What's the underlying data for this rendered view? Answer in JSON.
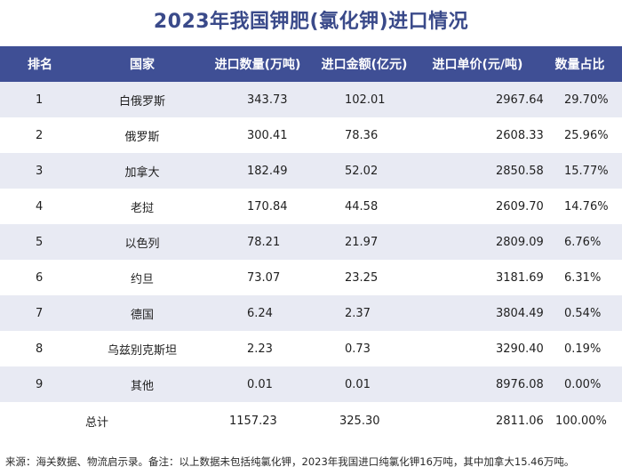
{
  "title": "2023年我国钾肥(氯化钾)进口情况",
  "headers": [
    "排名",
    "国家",
    "进口数量(万吨)",
    "进口金额(亿元)",
    "进口单价(元/吨)",
    "数量占比"
  ],
  "rows": [
    {
      "rank": "1",
      "country": "白俄罗斯",
      "qty": "343.73",
      "amount": "102.01",
      "price": "2967.64",
      "share": "29.70%"
    },
    {
      "rank": "2",
      "country": "俄罗斯",
      "qty": "300.41",
      "amount": "78.36",
      "price": "2608.33",
      "share": "25.96%"
    },
    {
      "rank": "3",
      "country": "加拿大",
      "qty": "182.49",
      "amount": "52.02",
      "price": "2850.58",
      "share": "15.77%"
    },
    {
      "rank": "4",
      "country": "老挝",
      "qty": "170.84",
      "amount": "44.58",
      "price": "2609.70",
      "share": "14.76%"
    },
    {
      "rank": "5",
      "country": "以色列",
      "qty": "78.21",
      "amount": "21.97",
      "price": "2809.09",
      "share": "6.76%"
    },
    {
      "rank": "6",
      "country": "约旦",
      "qty": "73.07",
      "amount": "23.25",
      "price": "3181.69",
      "share": "6.31%"
    },
    {
      "rank": "7",
      "country": "德国",
      "qty": "6.24",
      "amount": "2.37",
      "price": "3804.49",
      "share": "0.54%"
    },
    {
      "rank": "8",
      "country": "乌兹别克斯坦",
      "qty": "2.23",
      "amount": "0.73",
      "price": "3290.40",
      "share": "0.19%"
    },
    {
      "rank": "9",
      "country": "其他",
      "qty": "0.01",
      "amount": "0.01",
      "price": "8976.08",
      "share": "0.00%"
    }
  ],
  "total": {
    "label": "总计",
    "qty": "1157.23",
    "amount": "325.30",
    "price": "2811.06",
    "share": "100.00%"
  },
  "footnote": "来源：海关数据、物流启示录。备注：以上数据未包括纯氯化钾，2023年我国进口纯氯化钾16万吨，其中加拿大15.46万吨。",
  "colors": {
    "header_bg": "#3f4f95",
    "title": "#3a4a8a",
    "stripe": "#e8eaf3"
  }
}
